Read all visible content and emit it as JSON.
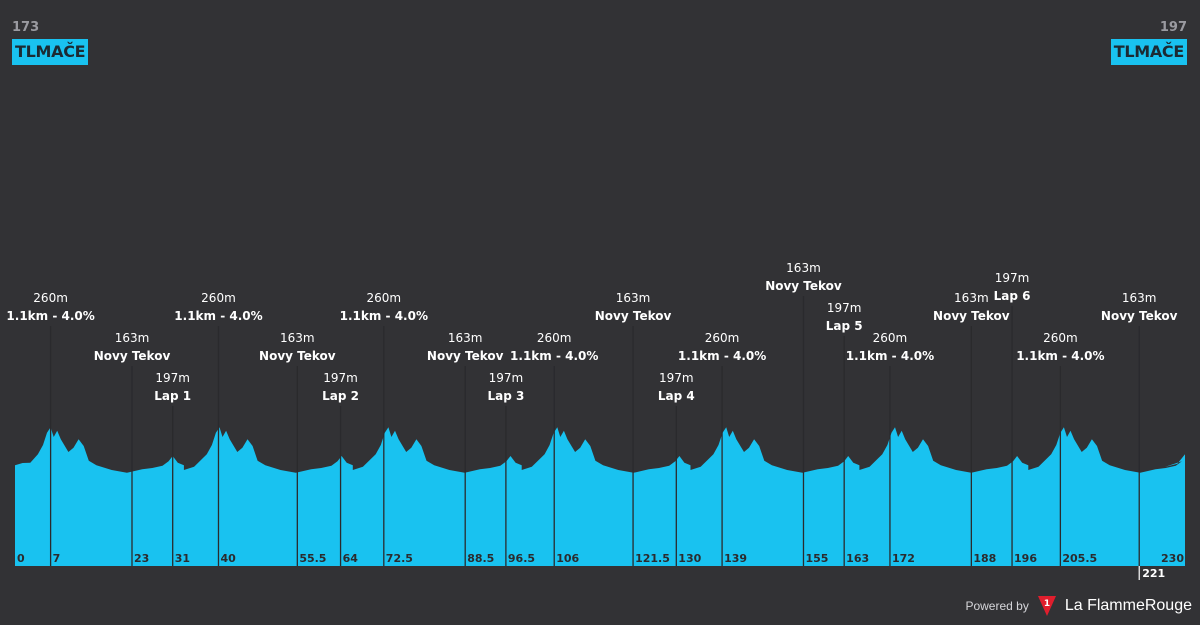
{
  "start": {
    "elevation": "173",
    "city": "TLMAČE"
  },
  "finish": {
    "elevation": "197",
    "city": "TLMAČE"
  },
  "footer": {
    "powered_by": "Powered by",
    "brand": "La FlammeRouge",
    "logo_number": "1"
  },
  "colors": {
    "background": "#323235",
    "profile_fill": "#19c2f0",
    "text": "#ffffff"
  },
  "chart_data": {
    "type": "area",
    "title": "",
    "xlabel": "",
    "ylabel": "",
    "xlim": [
      0,
      230
    ],
    "x_unit": "km",
    "elevation_unit": "m",
    "distance_ticks": [
      "0",
      "7",
      "23",
      "31",
      "40",
      "55.5",
      "64",
      "72.5",
      "88.5",
      "96.5",
      "106",
      "121.5",
      "130",
      "139",
      "155",
      "163",
      "172",
      "188",
      "196",
      "205.5",
      "221",
      "230"
    ],
    "waypoints": [
      {
        "km": 7,
        "elevation": "260m",
        "name": "1.1km - 4.0%"
      },
      {
        "km": 23,
        "elevation": "163m",
        "name": "Novy Tekov"
      },
      {
        "km": 31,
        "elevation": "197m",
        "name": "Lap 1"
      },
      {
        "km": 40,
        "elevation": "260m",
        "name": "1.1km - 4.0%"
      },
      {
        "km": 55.5,
        "elevation": "163m",
        "name": "Novy Tekov"
      },
      {
        "km": 64,
        "elevation": "197m",
        "name": "Lap 2"
      },
      {
        "km": 72.5,
        "elevation": "260m",
        "name": "1.1km - 4.0%"
      },
      {
        "km": 88.5,
        "elevation": "163m",
        "name": "Novy Tekov"
      },
      {
        "km": 96.5,
        "elevation": "197m",
        "name": "Lap 3"
      },
      {
        "km": 106,
        "elevation": "260m",
        "name": "1.1km - 4.0%"
      },
      {
        "km": 121.5,
        "elevation": "163m",
        "name": "Novy Tekov"
      },
      {
        "km": 130,
        "elevation": "197m",
        "name": "Lap 4"
      },
      {
        "km": 139,
        "elevation": "260m",
        "name": "1.1km - 4.0%"
      },
      {
        "km": 155,
        "elevation": "163m",
        "name": "Novy Tekov"
      },
      {
        "km": 163,
        "elevation": "197m",
        "name": "Lap 5"
      },
      {
        "km": 172,
        "elevation": "260m",
        "name": "1.1km - 4.0%"
      },
      {
        "km": 188,
        "elevation": "163m",
        "name": "Novy Tekov"
      },
      {
        "km": 196,
        "elevation": "197m",
        "name": "Lap 6"
      },
      {
        "km": 205.5,
        "elevation": "260m",
        "name": "1.1km - 4.0%"
      },
      {
        "km": 221,
        "elevation": "163m",
        "name": "Novy Tekov"
      }
    ]
  }
}
